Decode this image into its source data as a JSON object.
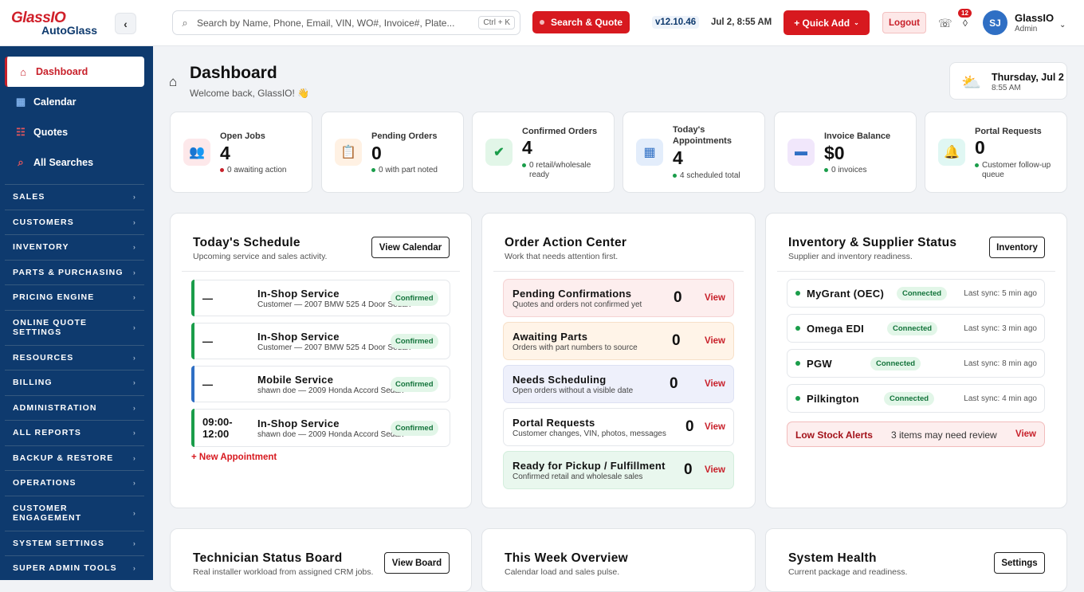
{
  "brand": {
    "name_top": "GlassIO",
    "name_bottom": "AutoGlass",
    "collapse": "‹"
  },
  "nav_main": [
    {
      "label": "Dashboard",
      "icon": "⌂"
    },
    {
      "label": "Calendar",
      "icon": "▦"
    },
    {
      "label": "Quotes",
      "icon": "☷"
    },
    {
      "label": "All Searches",
      "icon": "⌕"
    }
  ],
  "nav_sections": [
    "SALES",
    "CUSTOMERS",
    "INVENTORY",
    "PARTS & PURCHASING",
    "PRICING ENGINE",
    "ONLINE QUOTE SETTINGS",
    "RESOURCES",
    "BILLING",
    "ADMINISTRATION",
    "ALL REPORTS",
    "BACKUP & RESTORE",
    "OPERATIONS",
    "CUSTOMER ENGAGEMENT",
    "SYSTEM SETTINGS",
    "SUPER ADMIN TOOLS"
  ],
  "topbar": {
    "search_placeholder": "Search by Name, Phone, Email, VIN, WO#, Invoice#, Plate...",
    "shortcut": "Ctrl + K",
    "search_quote": "Search & Quote",
    "version": "v12.10.46",
    "datetime": "Jul 2, 8:55 AM",
    "quick_add": "+ Quick Add",
    "logout": "Logout",
    "notif_count": "12",
    "user_initials": "SJ",
    "user_name": "GlassIO",
    "user_role": "Admin"
  },
  "header": {
    "title": "Dashboard",
    "welcome": "Welcome back, GlassIO! 👋",
    "date": "Thursday, Jul 2",
    "time": "8:55 AM"
  },
  "stats": [
    {
      "label": "Open Jobs",
      "value": "4",
      "sub": "0 awaiting action",
      "icon": "👥",
      "bg": "#fde8ea",
      "dot": "#c8202a"
    },
    {
      "label": "Pending Orders",
      "value": "0",
      "sub": "0 with part noted",
      "icon": "📋",
      "bg": "#fff1e3",
      "dot": "#1a9d4a"
    },
    {
      "label": "Confirmed Orders",
      "value": "4",
      "sub": "0 retail/wholesale ready",
      "icon": "✔",
      "bg": "#e2f6e8",
      "dot": "#1a9d4a"
    },
    {
      "label": "Today's Appointments",
      "value": "4",
      "sub": "4 scheduled total",
      "icon": "▦",
      "bg": "#e3edfb",
      "dot": "#1a9d4a"
    },
    {
      "label": "Invoice Balance",
      "value": "$0",
      "sub": "0 invoices",
      "icon": "▬",
      "bg": "#f1e7fb",
      "dot": "#1a9d4a"
    },
    {
      "label": "Portal Requests",
      "value": "0",
      "sub": "Customer follow-up queue",
      "icon": "🔔",
      "bg": "#e0f7f3",
      "dot": "#1a9d4a"
    }
  ],
  "schedule": {
    "title": "Today's Schedule",
    "subtitle": "Upcoming service and sales activity.",
    "button": "View Calendar",
    "items": [
      {
        "time": "—",
        "type": "In-Shop Service",
        "desc": "Customer — 2007 BMW 525 4 Door Sedan",
        "status": "Confirmed",
        "color": "#1a9d4a"
      },
      {
        "time": "—",
        "type": "In-Shop Service",
        "desc": "Customer — 2007 BMW 525 4 Door Sedan",
        "status": "Confirmed",
        "color": "#1a9d4a"
      },
      {
        "time": "—",
        "type": "Mobile Service",
        "desc": "shawn doe — 2009 Honda Accord Sedan",
        "status": "Confirmed",
        "color": "#2f6fc4"
      },
      {
        "time": "09:00- 12:00",
        "type": "In-Shop Service",
        "desc": "shawn doe — 2009 Honda Accord Sedan",
        "status": "Confirmed",
        "color": "#1a9d4a"
      }
    ],
    "new_link": "+ New Appointment"
  },
  "orders": {
    "title": "Order Action Center",
    "subtitle": "Work that needs attention first.",
    "items": [
      {
        "title": "Pending Confirmations",
        "sub": "Quotes and orders not confirmed yet",
        "count": "0",
        "action": "View",
        "bg": "#fdeeee",
        "border": "#f5d3d3"
      },
      {
        "title": "Awaiting Parts",
        "sub": "Orders with part numbers to source",
        "count": "0",
        "action": "View",
        "bg": "#fff4e8",
        "border": "#f7e0c8"
      },
      {
        "title": "Needs Scheduling",
        "sub": "Open orders without a visible date",
        "count": "0",
        "action": "View",
        "bg": "#eef0fb",
        "border": "#dde1f3"
      },
      {
        "title": "Portal Requests",
        "sub": "Customer changes, VIN, photos, messages",
        "count": "0",
        "action": "View",
        "bg": "#ffffff",
        "border": "#e4e7eb"
      },
      {
        "title": "Ready for Pickup / Fulfillment",
        "sub": "Confirmed retail and wholesale sales",
        "count": "0",
        "action": "View",
        "bg": "#e9f7ee",
        "border": "#d4eedd"
      }
    ]
  },
  "inventory": {
    "title": "Inventory & Supplier Status",
    "subtitle": "Supplier and inventory readiness.",
    "button": "Inventory",
    "suppliers": [
      {
        "name": "MyGrant (OEC)",
        "status": "Connected",
        "sync": "Last sync: 5 min ago"
      },
      {
        "name": "Omega EDI",
        "status": "Connected",
        "sync": "Last sync: 3 min ago"
      },
      {
        "name": "PGW",
        "status": "Connected",
        "sync": "Last sync: 8 min ago"
      },
      {
        "name": "Pilkington",
        "status": "Connected",
        "sync": "Last sync: 4 min ago"
      }
    ],
    "low_stock": {
      "title": "Low Stock Alerts",
      "msg": "3 items may need review",
      "action": "View"
    }
  },
  "tech": {
    "title": "Technician Status Board",
    "subtitle": "Real installer workload from assigned CRM jobs.",
    "button": "View Board"
  },
  "week": {
    "title": "This Week Overview",
    "subtitle": "Calendar load and sales pulse."
  },
  "health": {
    "title": "System Health",
    "subtitle": "Current package and readiness.",
    "button": "Settings"
  }
}
